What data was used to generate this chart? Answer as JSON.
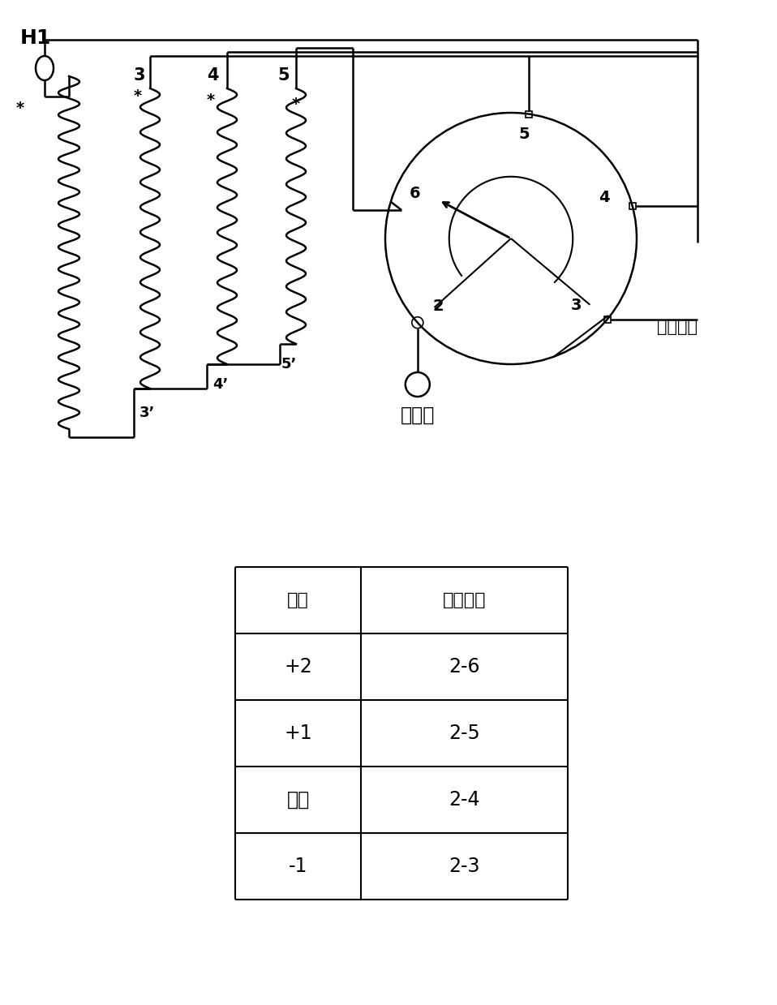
{
  "bg_color": "#ffffff",
  "line_color": "#000000",
  "fig_width": 9.58,
  "fig_height": 12.39,
  "dpi": 100,
  "table_data": [
    [
      "分接",
      "开关位置"
    ],
    [
      "+2",
      "2-6"
    ],
    [
      "+1",
      "2-5"
    ],
    [
      "额定",
      "2-4"
    ],
    [
      "-1",
      "2-3"
    ]
  ],
  "label_H1": "H1",
  "label_yinchu": "引出端",
  "label_wuzai": "无载开关",
  "coil_label_3": "3",
  "coil_label_4": "4",
  "coil_label_5": "5",
  "coil_label_3p": "3’",
  "coil_label_4p": "4’",
  "coil_label_5p": "5’"
}
